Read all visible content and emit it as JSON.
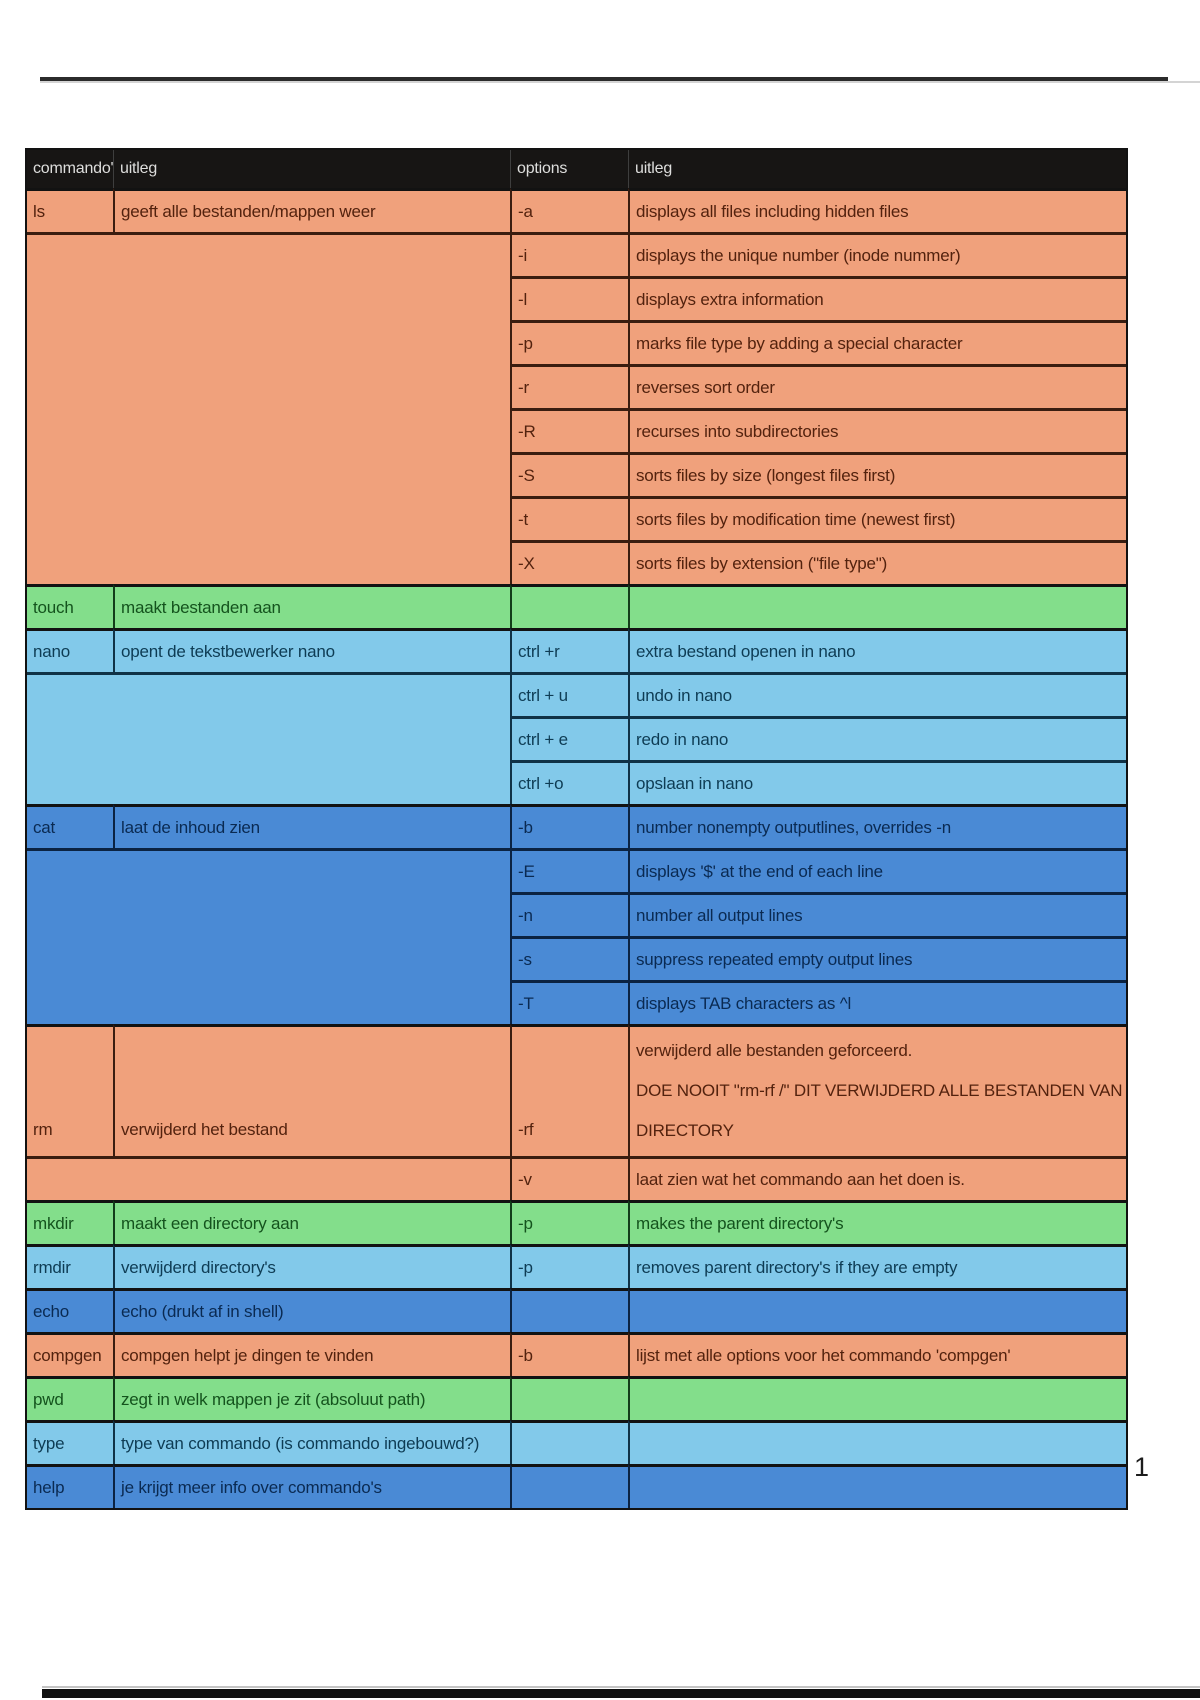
{
  "page": {
    "page_number": "1"
  },
  "table": {
    "header": [
      "commando's",
      "uitleg",
      "options",
      "uitleg"
    ],
    "colors": {
      "orange": "#f0a17c",
      "green": "#83de8b",
      "lightblue": "#82c9ea",
      "blue": "#4a8ad5",
      "header_bg": "#171514",
      "header_text": "#dededd",
      "frame": "#121212",
      "header_divider": "#3e3e3e"
    },
    "text_tints": {
      "orange": "#53220e",
      "green": "#14531d",
      "lightblue": "#0e3c54",
      "blue": "#0a2a52"
    },
    "border_tints": {
      "orange": "#3a1d10",
      "green": "#123d1a",
      "lightblue": "#103246",
      "blue": "#0b2342"
    },
    "rows": [
      {
        "color": "orange",
        "left": "cells",
        "cmd": "ls",
        "desc": "geeft alle bestanden/mappen weer",
        "opt": "-a",
        "optdesc": "displays all files including hidden files"
      },
      {
        "color": "orange",
        "left": "merge",
        "span": 8,
        "opt": "-i",
        "optdesc": "displays the unique number (inode nummer)"
      },
      {
        "color": "orange",
        "left": "skip",
        "opt": "-l",
        "optdesc": "displays extra information"
      },
      {
        "color": "orange",
        "left": "skip",
        "opt": "-p",
        "optdesc": "marks file type by adding a special character"
      },
      {
        "color": "orange",
        "left": "skip",
        "opt": "-r",
        "optdesc": "reverses sort order"
      },
      {
        "color": "orange",
        "left": "skip",
        "opt": "-R",
        "optdesc": "recurses into subdirectories"
      },
      {
        "color": "orange",
        "left": "skip",
        "opt": "-S",
        "optdesc": "sorts files by size (longest files first)"
      },
      {
        "color": "orange",
        "left": "skip",
        "opt": "-t",
        "optdesc": "sorts files by modification time (newest first)"
      },
      {
        "color": "orange",
        "left": "skip",
        "opt": "-X",
        "optdesc": "sorts files by extension (\"file type\")"
      },
      {
        "color": "green",
        "left": "cells",
        "cmd": "touch",
        "desc": "maakt bestanden aan",
        "opt": "",
        "optdesc": ""
      },
      {
        "color": "lightblue",
        "left": "cells",
        "cmd": "nano",
        "desc": "opent de tekstbewerker nano",
        "opt": "ctrl +r",
        "optdesc": "extra bestand openen in nano"
      },
      {
        "color": "lightblue",
        "left": "merge",
        "span": 3,
        "opt": "ctrl + u",
        "optdesc": "undo in nano"
      },
      {
        "color": "lightblue",
        "left": "skip",
        "opt": "ctrl + e",
        "optdesc": "redo in nano"
      },
      {
        "color": "lightblue",
        "left": "skip",
        "opt": "ctrl +o",
        "optdesc": "opslaan in nano"
      },
      {
        "color": "blue",
        "left": "cells",
        "cmd": "cat",
        "desc": "laat de inhoud zien",
        "opt": "-b",
        "optdesc": "number nonempty outputlines, overrides -n"
      },
      {
        "color": "blue",
        "left": "merge",
        "span": 4,
        "opt": "-E",
        "optdesc": "displays '$' at the end of each line"
      },
      {
        "color": "blue",
        "left": "skip",
        "opt": "-n",
        "optdesc": "number all output lines"
      },
      {
        "color": "blue",
        "left": "skip",
        "opt": "-s",
        "optdesc": "suppress repeated empty output lines"
      },
      {
        "color": "blue",
        "left": "skip",
        "opt": "-T",
        "optdesc": "displays TAB characters as ^l"
      },
      {
        "color": "orange",
        "left": "cells",
        "tall": true,
        "cmd": "rm",
        "desc": "verwijderd het bestand",
        "opt": "-rf",
        "optdesc_lines": [
          "verwijderd alle bestanden geforceerd.",
          "DOE NOOIT \"rm-rf /\" DIT VERWIJDERD ALLE BESTANDEN VANAF DE ROOT",
          "DIRECTORY"
        ]
      },
      {
        "color": "orange",
        "left": "merge",
        "span": 1,
        "opt": "-v",
        "optdesc": "laat zien wat het commando aan het doen is."
      },
      {
        "color": "green",
        "left": "cells",
        "cmd": "mkdir",
        "desc": "maakt een directory aan",
        "opt": "-p",
        "optdesc": "makes the parent directory's"
      },
      {
        "color": "lightblue",
        "left": "cells",
        "cmd": "rmdir",
        "desc": "verwijderd directory's",
        "opt": "-p",
        "optdesc": "removes parent directory's if they are empty"
      },
      {
        "color": "blue",
        "left": "cells",
        "cmd": "echo",
        "desc": "echo (drukt af in shell)",
        "opt": "",
        "optdesc": ""
      },
      {
        "color": "orange",
        "left": "cells",
        "cmd": "compgen",
        "desc": "compgen helpt je dingen te vinden",
        "opt": "-b",
        "optdesc": "lijst met alle options voor het commando 'compgen'"
      },
      {
        "color": "green",
        "left": "cells",
        "cmd": "pwd",
        "desc": "zegt in welk mappen je zit (absoluut path)",
        "opt": "",
        "optdesc": ""
      },
      {
        "color": "lightblue",
        "left": "cells",
        "cmd": "type",
        "desc": "type van commando (is commando ingebouwd?)",
        "opt": "",
        "optdesc": ""
      },
      {
        "color": "blue",
        "left": "cells",
        "cmd": "help",
        "desc": "je krijgt meer info over commando's",
        "opt": "",
        "optdesc": ""
      }
    ]
  }
}
